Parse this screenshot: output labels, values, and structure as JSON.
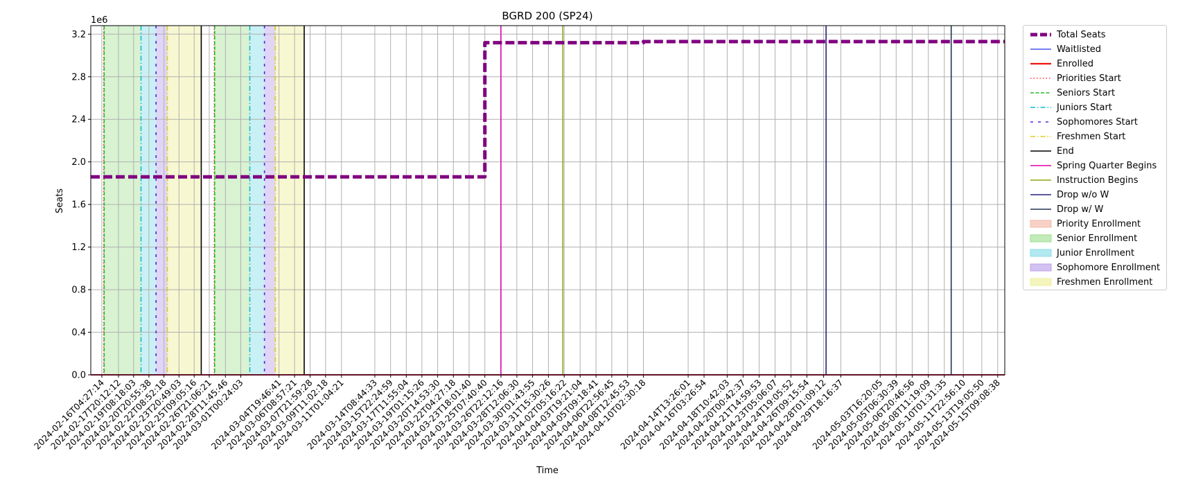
{
  "chart_data": {
    "type": "line",
    "title": "BGRD 200 (SP24)",
    "xlabel": "Time",
    "ylabel": "Seats",
    "y_offset_label": "1e6",
    "x_range": [
      "2024-02-15T02:00:00",
      "2024-05-16T02:00:00"
    ],
    "ylim": [
      0,
      3.28
    ],
    "y_scale_multiplier": 1000000,
    "yticks": [
      "0.0",
      "0.4",
      "0.8",
      "1.2",
      "1.6",
      "2.0",
      "2.4",
      "2.8",
      "3.2"
    ],
    "xticks": [
      "2024-02-16T04:27:14",
      "2024-02-17T20:12:12",
      "2024-02-19T08:18:03",
      "2024-02-20T20:55:38",
      "2024-02-22T08:52:18",
      "2024-02-23T20:49:03",
      "2024-02-25T09:05:16",
      "2024-02-26T21:06:21",
      "2024-02-28T11:45:46",
      "2024-03-01T00:24:03",
      "2024-03-04T19:46:41",
      "2024-03-06T08:57:21",
      "2024-03-07T21:59:28",
      "2024-03-09T11:02:18",
      "2024-03-11T01:04:21",
      "2024-03-14T08:44:33",
      "2024-03-15T22:24:59",
      "2024-03-17T11:55:04",
      "2024-03-19T01:15:26",
      "2024-03-20T14:53:30",
      "2024-03-22T04:27:18",
      "2024-03-23T18:01:40",
      "2024-03-25T07:40:40",
      "2024-03-26T22:12:16",
      "2024-03-28T12:06:30",
      "2024-03-30T01:43:55",
      "2024-03-31T15:30:26",
      "2024-04-02T05:16:22",
      "2024-04-03T19:21:04",
      "2024-04-05T09:18:41",
      "2024-04-06T22:56:45",
      "2024-04-08T12:45:53",
      "2024-04-10T02:30:18",
      "2024-04-14T13:26:01",
      "2024-04-16T03:26:54",
      "2024-04-18T10:42:03",
      "2024-04-20T00:42:37",
      "2024-04-21T14:59:53",
      "2024-04-23T05:06:07",
      "2024-04-24T19:05:52",
      "2024-04-26T09:15:54",
      "2024-04-28T01:09:12",
      "2024-04-29T18:16:37",
      "2024-05-03T16:20:05",
      "2024-05-05T06:30:39",
      "2024-05-06T20:46:56",
      "2024-05-08T11:19:09",
      "2024-05-10T01:31:35",
      "2024-05-11T22:56:10",
      "2024-05-13T19:05:50",
      "2024-05-15T09:08:38"
    ],
    "grid": true,
    "legend_position": "outside right",
    "series": [
      {
        "name": "Total Seats",
        "color": "#800080",
        "style": "dashed-thick",
        "x": [
          "2024-02-15T02:00:00",
          "2024-03-25T07:40:40",
          "2024-03-25T07:40:40",
          "2024-04-10T02:30:18",
          "2024-04-10T02:30:18",
          "2024-05-16T02:00:00"
        ],
        "y": [
          1.86,
          1.86,
          3.12,
          3.12,
          3.13,
          3.13
        ]
      },
      {
        "name": "Waitlisted",
        "color": "#4455ee",
        "style": "solid",
        "x": [
          "2024-02-15T02:00:00",
          "2024-05-16T02:00:00"
        ],
        "y": [
          0,
          0
        ]
      },
      {
        "name": "Enrolled",
        "color": "#ee1111",
        "style": "solid-thick",
        "x": [
          "2024-02-15T02:00:00",
          "2024-05-16T02:00:00"
        ],
        "y": [
          0,
          0
        ]
      }
    ],
    "events": [
      {
        "name": "Priorities Start",
        "color": "#ff3333",
        "style": "dotted",
        "times": [
          "2024-02-16T09:00:00",
          "2024-02-27T09:00:00"
        ]
      },
      {
        "name": "Seniors Start",
        "color": "#22bb22",
        "style": "dashed",
        "times": [
          "2024-02-16T10:00:00",
          "2024-02-27T10:00:00"
        ]
      },
      {
        "name": "Juniors Start",
        "color": "#11bbcc",
        "style": "dashdot",
        "times": [
          "2024-02-20T02:00:00",
          "2024-03-01T22:00:00"
        ]
      },
      {
        "name": "Sophomores Start",
        "color": "#5522dd",
        "style": "loosedash",
        "times": [
          "2024-02-21T14:00:00",
          "2024-03-03T09:00:00"
        ]
      },
      {
        "name": "Freshmen Start",
        "color": "#ddcc22",
        "style": "dashdot",
        "times": [
          "2024-02-22T17:00:00",
          "2024-03-04T11:00:00"
        ]
      },
      {
        "name": "End",
        "color": "#000000",
        "style": "solid",
        "times": [
          "2024-02-26T02:00:00",
          "2024-03-07T08:00:00"
        ]
      },
      {
        "name": "Spring Quarter Begins",
        "color": "#dd00aa",
        "style": "solid",
        "times": [
          "2024-03-26T22:00:00"
        ]
      },
      {
        "name": "Instruction Begins",
        "color": "#88aa11",
        "style": "solid",
        "times": [
          "2024-04-02T02:00:00"
        ]
      },
      {
        "name": "Drop w/o W",
        "color": "#22227a",
        "style": "solid",
        "times": [
          "2024-04-28T07:00:00"
        ]
      },
      {
        "name": "Drop w/ W",
        "color": "#223355",
        "style": "solid",
        "times": [
          "2024-05-10T18:00:00"
        ]
      }
    ],
    "spans": [
      {
        "name": "Priority Enrollment",
        "color": "#f4b9a8",
        "opacity": 0.45,
        "ranges": [
          [
            "2024-02-16T09:00:00",
            "2024-02-16T10:00:00"
          ],
          [
            "2024-02-27T09:00:00",
            "2024-02-27T10:00:00"
          ]
        ]
      },
      {
        "name": "Senior Enrollment",
        "color": "#99dd88",
        "opacity": 0.38,
        "ranges": [
          [
            "2024-02-16T10:00:00",
            "2024-02-20T02:00:00"
          ],
          [
            "2024-02-27T10:00:00",
            "2024-03-01T22:00:00"
          ]
        ]
      },
      {
        "name": "Junior Enrollment",
        "color": "#88dde8",
        "opacity": 0.45,
        "ranges": [
          [
            "2024-02-20T02:00:00",
            "2024-02-21T14:00:00"
          ],
          [
            "2024-03-01T22:00:00",
            "2024-03-03T09:00:00"
          ]
        ]
      },
      {
        "name": "Sophomore Enrollment",
        "color": "#bba2ea",
        "opacity": 0.45,
        "ranges": [
          [
            "2024-02-21T14:00:00",
            "2024-02-22T17:00:00"
          ],
          [
            "2024-03-03T09:00:00",
            "2024-03-04T11:00:00"
          ]
        ]
      },
      {
        "name": "Freshmen Enrollment",
        "color": "#eef099",
        "opacity": 0.45,
        "ranges": [
          [
            "2024-02-22T17:00:00",
            "2024-02-26T02:00:00"
          ],
          [
            "2024-03-04T11:00:00",
            "2024-03-07T08:00:00"
          ]
        ]
      }
    ]
  }
}
